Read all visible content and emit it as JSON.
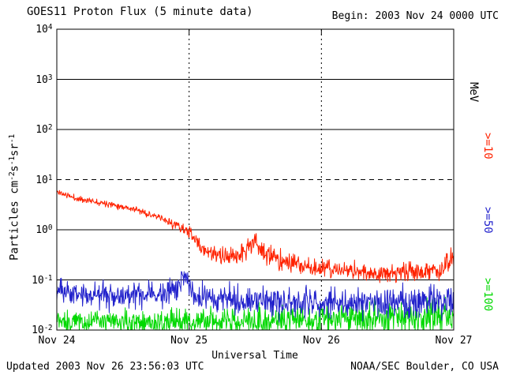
{
  "header": {
    "title": "GOES11 Proton Flux (5 minute data)",
    "begin_label": "Begin: 2003 Nov 24 0000 UTC"
  },
  "footer": {
    "updated": "Updated 2003 Nov 26 23:56:03 UTC",
    "source": "NOAA/SEC Boulder, CO USA"
  },
  "chart_data": {
    "type": "line",
    "title": "GOES11 Proton Flux (5 minute data)",
    "xlabel": "Universal Time",
    "units_label": "MeV",
    "ylabel_parts": [
      [
        "text",
        "Particles cm"
      ],
      [
        "sup",
        "-2"
      ],
      [
        "text",
        "s"
      ],
      [
        "sup",
        "-1"
      ],
      [
        "text",
        "sr"
      ],
      [
        "sup",
        "-1"
      ]
    ],
    "y_unit": "Particles cm^-2 s^-1 sr^-1 (log scale)",
    "x_tick_labels": [
      "Nov 24",
      "Nov 25",
      "Nov 26",
      "Nov 27"
    ],
    "x_tick_days": [
      0,
      1,
      2,
      3
    ],
    "x_range_days": [
      0,
      3
    ],
    "y_log_range": [
      -2,
      4
    ],
    "y_tick_base": "10",
    "y_tick_exponents": [
      "4",
      "3",
      "2",
      "1",
      "0",
      "-1",
      "-2"
    ],
    "sample_interval_minutes": 5,
    "grid": {
      "h_solid_exponents": [
        3,
        2,
        0,
        -1
      ],
      "h_dashed_exponents": [
        1
      ],
      "v_dashed_days": [
        1,
        2
      ]
    },
    "axis_color": "#000000",
    "background": "#ffffff",
    "legend_position": "right",
    "trend_format": "[day_since_begin, log10_flux_mean, log10_noise_amplitude]",
    "series": [
      {
        "id": "protons-ge-10mev",
        "name": "Protons >=10 MeV",
        "label": ">=10",
        "color": "#ff2200",
        "noise_seed": 11,
        "clip_floor_log10": -2,
        "trend": [
          [
            0.0,
            0.76,
            0.05
          ],
          [
            0.15,
            0.62,
            0.05
          ],
          [
            0.4,
            0.52,
            0.05
          ],
          [
            0.6,
            0.4,
            0.05
          ],
          [
            0.75,
            0.26,
            0.06
          ],
          [
            0.9,
            0.1,
            0.08
          ],
          [
            1.0,
            -0.05,
            0.1
          ],
          [
            1.1,
            -0.38,
            0.13
          ],
          [
            1.25,
            -0.56,
            0.15
          ],
          [
            1.4,
            -0.48,
            0.17
          ],
          [
            1.5,
            -0.22,
            0.18
          ],
          [
            1.58,
            -0.5,
            0.18
          ],
          [
            1.75,
            -0.66,
            0.17
          ],
          [
            2.0,
            -0.78,
            0.16
          ],
          [
            2.4,
            -0.86,
            0.16
          ],
          [
            2.7,
            -0.85,
            0.17
          ],
          [
            2.9,
            -0.8,
            0.18
          ],
          [
            3.0,
            -0.58,
            0.18
          ]
        ]
      },
      {
        "id": "protons-ge-50mev",
        "name": "Protons >=50 MeV",
        "label": ">=50",
        "color": "#2222cc",
        "noise_seed": 23,
        "clip_floor_log10": -2,
        "trend": [
          [
            0.0,
            -1.22,
            0.2
          ],
          [
            0.3,
            -1.3,
            0.22
          ],
          [
            0.6,
            -1.32,
            0.22
          ],
          [
            0.9,
            -1.25,
            0.22
          ],
          [
            0.96,
            -0.85,
            0.2
          ],
          [
            1.02,
            -1.3,
            0.22
          ],
          [
            1.4,
            -1.38,
            0.24
          ],
          [
            1.8,
            -1.45,
            0.24
          ],
          [
            2.2,
            -1.46,
            0.25
          ],
          [
            2.6,
            -1.45,
            0.25
          ],
          [
            3.0,
            -1.42,
            0.25
          ]
        ]
      },
      {
        "id": "protons-ge-100mev",
        "name": "Protons >=100 MeV",
        "label": ">=100",
        "color": "#00d800",
        "noise_seed": 37,
        "clip_floor_log10": -2,
        "trend": [
          [
            0.0,
            -1.82,
            0.2
          ],
          [
            0.5,
            -1.85,
            0.2
          ],
          [
            1.0,
            -1.84,
            0.22
          ],
          [
            1.5,
            -1.8,
            0.24
          ],
          [
            2.0,
            -1.78,
            0.26
          ],
          [
            2.5,
            -1.76,
            0.27
          ],
          [
            3.0,
            -1.74,
            0.28
          ]
        ]
      }
    ]
  }
}
